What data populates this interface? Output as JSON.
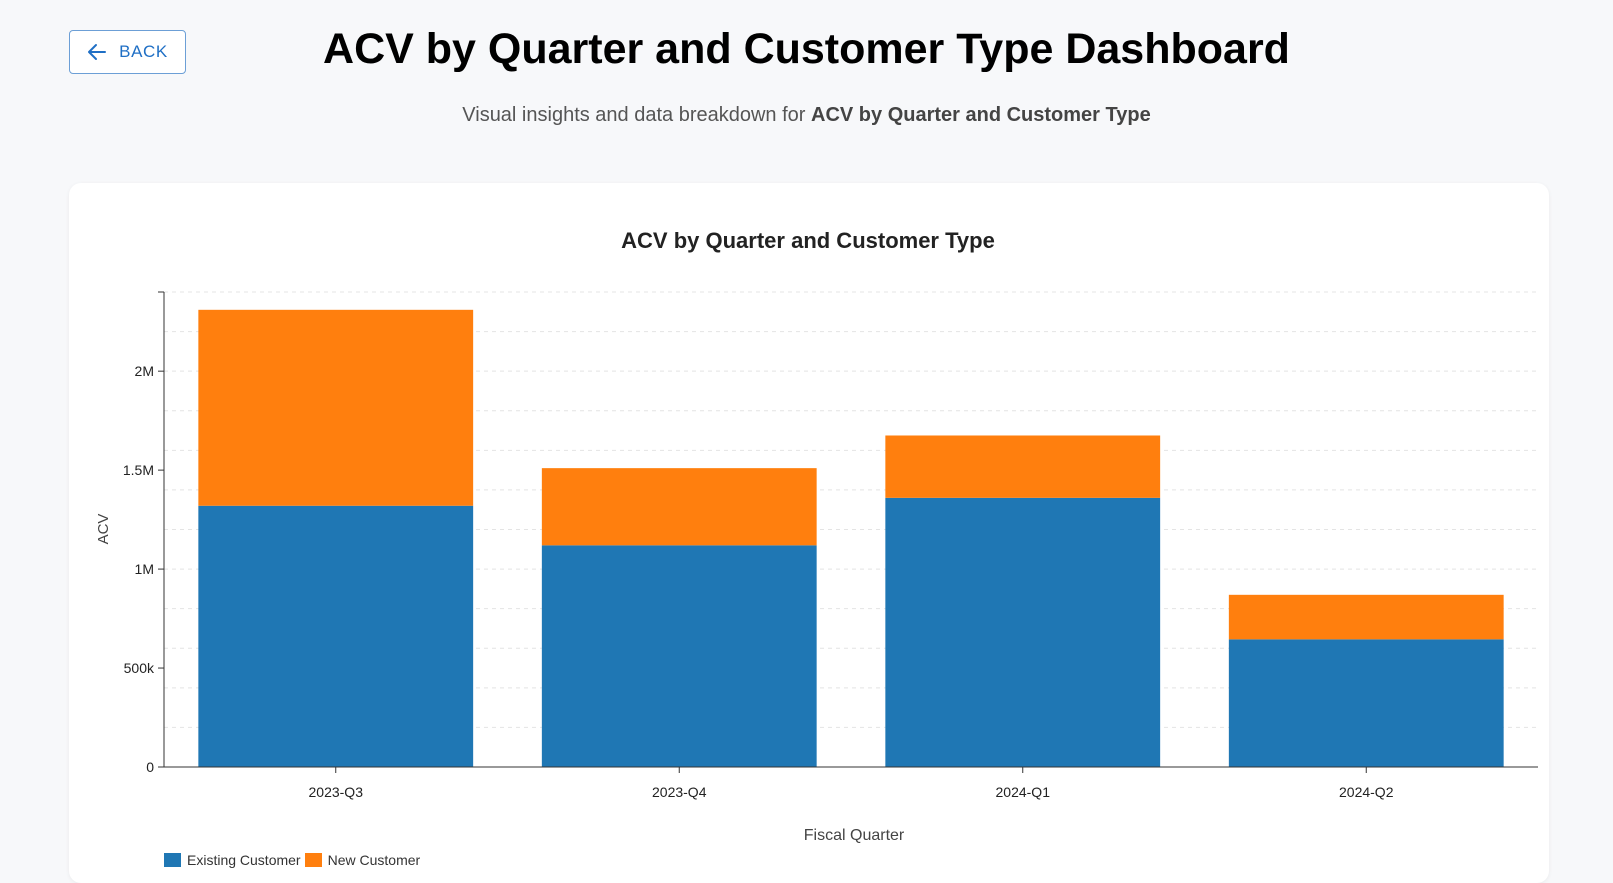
{
  "header": {
    "back_label": "BACK",
    "title": "ACV by Quarter and Customer Type Dashboard",
    "subtitle_prefix": "Visual insights and data breakdown for ",
    "subtitle_bold": "ACV by Quarter and Customer Type"
  },
  "colors": {
    "existing": "#1f77b4",
    "new": "#ff7f0e",
    "accent": "#1f6fc5"
  },
  "icons": {
    "back": "arrow-left-icon"
  },
  "chart_data": {
    "type": "bar",
    "stacked": true,
    "title": "ACV by Quarter and Customer Type",
    "xlabel": "Fiscal Quarter",
    "ylabel": "ACV",
    "categories": [
      "2023-Q3",
      "2023-Q4",
      "2024-Q1",
      "2024-Q2"
    ],
    "series": [
      {
        "name": "Existing Customer",
        "values": [
          1320000,
          1120000,
          1360000,
          645000
        ]
      },
      {
        "name": "New Customer",
        "values": [
          990000,
          390000,
          315000,
          225000
        ]
      }
    ],
    "ylim": [
      0,
      2400000
    ],
    "yticks": [
      0,
      500000,
      1000000,
      1500000,
      2000000
    ],
    "ytick_labels": [
      "0",
      "500k",
      "1M",
      "1.5M",
      "2M"
    ],
    "grid": true,
    "legend": "bottom-left"
  }
}
